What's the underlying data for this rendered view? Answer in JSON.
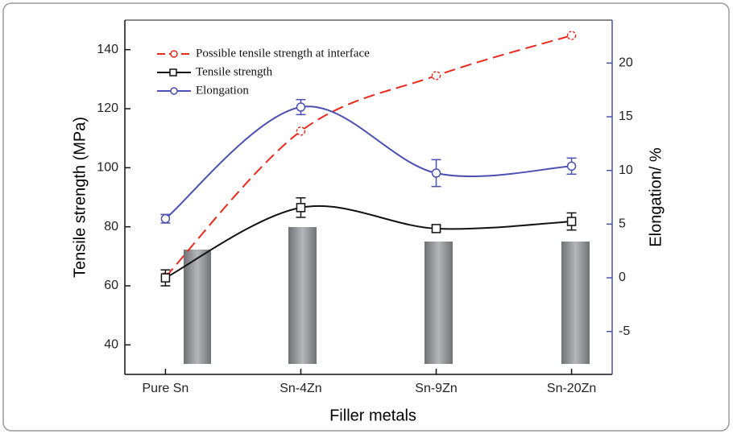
{
  "chart_data": {
    "type": "line",
    "categories": [
      "Pure Sn",
      "Sn-4Zn",
      "Sn-9Zn",
      "Sn-20Zn"
    ],
    "x_label": "Filler metals",
    "y_label": "Tensile strength (MPa)",
    "y2_label": "Elongation/ %",
    "ylim": [
      30,
      150
    ],
    "yticks": [
      40,
      60,
      80,
      100,
      120,
      140
    ],
    "y2lim": [
      -9,
      24
    ],
    "y2ticks": [
      -5,
      0,
      5,
      10,
      15,
      20
    ],
    "y2_color": "#4b50b0",
    "legend": "upper left",
    "series": [
      {
        "name": "Possible tensile strength at interface",
        "color": "#e8291c",
        "axis": "y",
        "dashed": true,
        "marker": "circle",
        "values": [
          63,
          112.4,
          131.2,
          144.8
        ]
      },
      {
        "name": "Tensile strength",
        "color": "#111111",
        "axis": "y",
        "dashed": false,
        "marker": "square",
        "values": [
          62.7,
          86.5,
          79.4,
          81.8
        ],
        "errors": [
          2.7,
          3.3,
          1.1,
          2.9
        ]
      },
      {
        "name": "Elongation",
        "color": "#4b50b0",
        "axis": "y2",
        "dashed": false,
        "marker": "circle",
        "values": [
          5.5,
          15.9,
          9.75,
          10.4
        ],
        "errors": [
          0.4,
          0.7,
          1.25,
          0.75
        ]
      }
    ]
  }
}
